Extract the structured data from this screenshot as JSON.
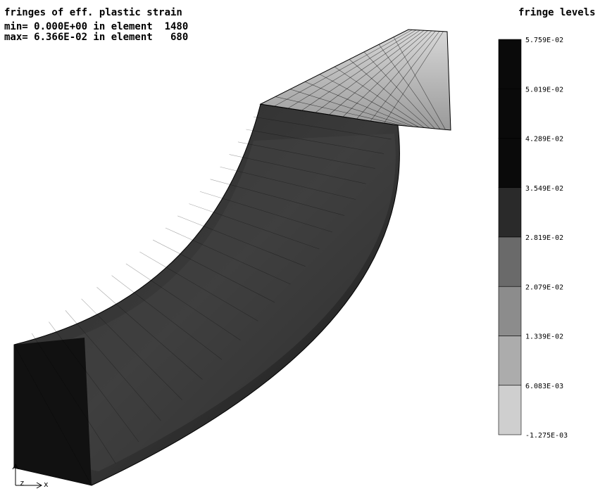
{
  "header": {
    "title": "fringes of eff. plastic strain",
    "min_line": "min= 0.000E+00 in element  1480",
    "max_line": "max= 6.366E-02 in element   680"
  },
  "legend": {
    "title": "fringe levels",
    "levels": [
      "5.759E-02",
      "5.019E-02",
      "4.289E-02",
      "3.549E-02",
      "2.819E-02",
      "2.079E-02",
      "1.339E-02",
      "6.083E-03",
      "-1.275E-03"
    ]
  },
  "triad": {
    "z": "z",
    "x": "x"
  }
}
